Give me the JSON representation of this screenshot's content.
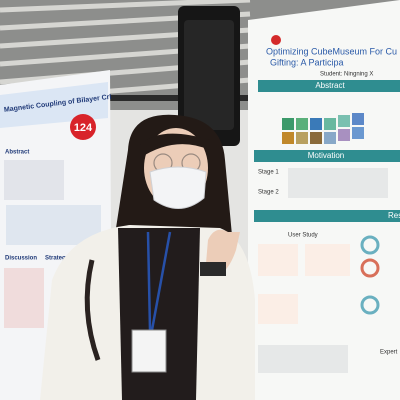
{
  "left_poster": {
    "title": "Magnetic Coupling of Bilayer CrI",
    "number": "124",
    "sections": [
      "Abstract",
      "Strategy",
      "Discussion"
    ]
  },
  "right_poster": {
    "title_lines": [
      "Optimizing CubeMuseum For Cu",
      "Gifting: A Participa"
    ],
    "author": "Student: Ningning X",
    "sections": [
      "Abstract",
      "Motivation",
      "Res"
    ],
    "stages": [
      "Stage 1",
      "Stage 2"
    ],
    "subsections": [
      "User Study",
      "Expert"
    ]
  }
}
